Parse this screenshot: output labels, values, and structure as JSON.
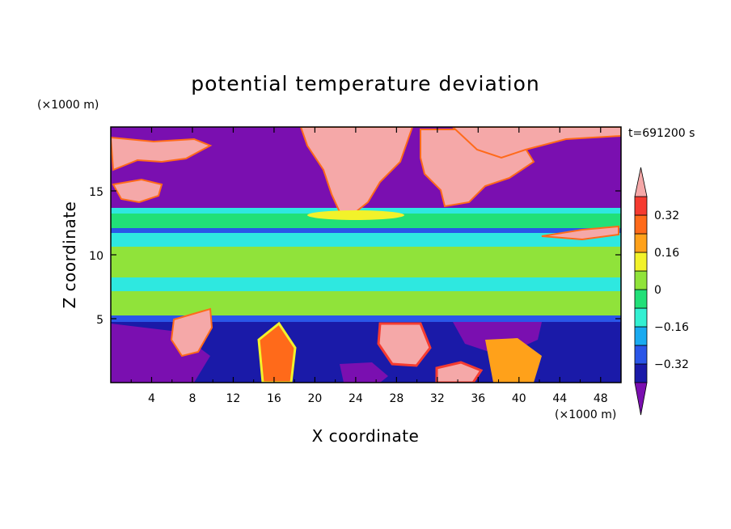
{
  "chart_data": {
    "type": "heatmap",
    "title": "potential temperature deviation",
    "xlabel": "X coordinate",
    "ylabel": "Z coordinate",
    "x_unit": "(×1000 m)",
    "y_unit": "(×1000 m)",
    "time_label": "t=691200 s",
    "xlim": [
      0,
      50
    ],
    "ylim": [
      0,
      20
    ],
    "x_ticks": [
      4,
      8,
      12,
      16,
      20,
      24,
      28,
      32,
      36,
      40,
      44,
      48
    ],
    "y_ticks": [
      5,
      10,
      15
    ],
    "colorbar": {
      "labels": [
        {
          "value": 0.32,
          "text": "0.32"
        },
        {
          "value": 0.16,
          "text": "0.16"
        },
        {
          "value": 0,
          "text": "0"
        },
        {
          "value": -0.16,
          "text": "−0.16"
        },
        {
          "value": -0.32,
          "text": "−0.32"
        }
      ],
      "levels": [
        -0.4,
        -0.32,
        -0.24,
        -0.16,
        -0.08,
        0,
        0.08,
        0.16,
        0.24,
        0.32,
        0.4
      ],
      "colors": [
        "#1a1aa8",
        "#2a56e8",
        "#19aaf0",
        "#33f0d2",
        "#21e078",
        "#90e33a",
        "#f2f22a",
        "#ffa11a",
        "#ff6a1a",
        "#f53b30"
      ],
      "under_color": "#7a0fb0",
      "over_color": "#f5a8a8"
    },
    "colors": {
      "dark_purple": "#7a0fb0",
      "pink": "#f5a8a8",
      "cyan": "#2ee8e0",
      "green": "#90e33a",
      "light_green": "#21e078",
      "blue": "#2a56e8",
      "navy": "#1a1aa8",
      "yellow": "#f2f22a",
      "orange": "#ffa11a",
      "red": "#f53b30"
    }
  }
}
